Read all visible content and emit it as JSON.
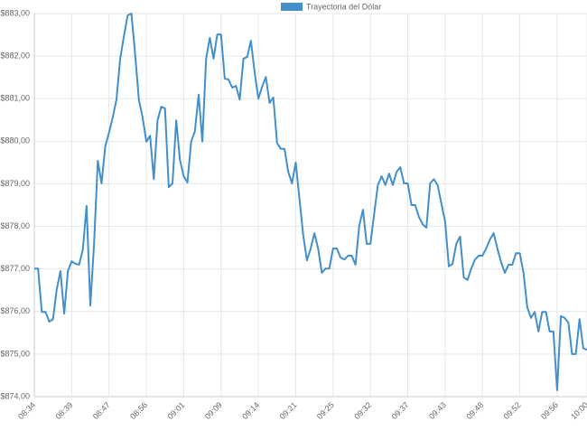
{
  "chart_data": {
    "type": "line",
    "categories": [
      "08:34",
      null,
      null,
      null,
      null,
      null,
      null,
      null,
      null,
      null,
      "08:39",
      null,
      null,
      null,
      null,
      null,
      null,
      null,
      null,
      null,
      "08:47",
      null,
      null,
      null,
      null,
      null,
      null,
      null,
      null,
      null,
      "08:56",
      null,
      null,
      null,
      null,
      null,
      null,
      null,
      null,
      null,
      "09:01",
      null,
      null,
      null,
      null,
      null,
      null,
      null,
      null,
      null,
      "09:09",
      null,
      null,
      null,
      null,
      null,
      null,
      null,
      null,
      null,
      "09:14",
      null,
      null,
      null,
      null,
      null,
      null,
      null,
      null,
      null,
      "09:21",
      null,
      null,
      null,
      null,
      null,
      null,
      null,
      null,
      null,
      "09:25",
      null,
      null,
      null,
      null,
      null,
      null,
      null,
      null,
      null,
      "09:32",
      null,
      null,
      null,
      null,
      null,
      null,
      null,
      null,
      null,
      "09:37",
      null,
      null,
      null,
      null,
      null,
      null,
      null,
      null,
      null,
      "09:43",
      null,
      null,
      null,
      null,
      null,
      null,
      null,
      null,
      null,
      "09:48",
      null,
      null,
      null,
      null,
      null,
      null,
      null,
      null,
      null,
      "09:52",
      null,
      null,
      null,
      null,
      null,
      null,
      null,
      null,
      null,
      "09:56",
      null,
      null,
      null,
      null,
      null,
      null,
      null,
      "10:00"
    ],
    "series": [
      {
        "name": "Trayectoria del Dólar",
        "color": "#428fcc",
        "values": [
          877.01,
          877.01,
          875.99,
          875.99,
          875.76,
          875.82,
          876.52,
          876.95,
          875.95,
          876.95,
          877.18,
          877.12,
          877.1,
          877.46,
          878.48,
          876.14,
          877.59,
          879.54,
          879.01,
          879.88,
          880.2,
          880.56,
          880.98,
          881.94,
          882.47,
          882.96,
          883.0,
          882.04,
          880.98,
          880.56,
          879.99,
          880.13,
          879.11,
          880.49,
          880.81,
          880.77,
          878.92,
          879.01,
          880.49,
          879.56,
          879.18,
          879.03,
          879.99,
          880.24,
          881.09,
          879.99,
          881.94,
          882.43,
          881.94,
          882.51,
          882.51,
          881.47,
          881.45,
          881.26,
          881.3,
          880.98,
          881.94,
          881.98,
          882.36,
          881.62,
          881.0,
          881.28,
          881.51,
          880.9,
          881.03,
          879.96,
          879.82,
          879.82,
          879.28,
          879.01,
          879.5,
          878.65,
          877.8,
          877.2,
          877.48,
          877.84,
          877.48,
          876.91,
          877.01,
          877.01,
          877.48,
          877.48,
          877.27,
          877.22,
          877.31,
          877.31,
          877.1,
          878.01,
          878.39,
          877.59,
          877.59,
          878.29,
          878.97,
          879.18,
          878.97,
          879.24,
          878.97,
          879.28,
          879.39,
          879.01,
          879.01,
          878.5,
          878.5,
          878.22,
          878.05,
          877.97,
          879.01,
          879.11,
          878.97,
          878.54,
          878.12,
          877.06,
          877.12,
          877.59,
          877.76,
          876.8,
          876.74,
          877.01,
          877.22,
          877.31,
          877.31,
          877.48,
          877.69,
          877.84,
          877.48,
          877.16,
          876.91,
          877.1,
          877.1,
          877.37,
          877.37,
          876.91,
          876.1,
          875.85,
          875.99,
          875.53,
          875.99,
          875.99,
          875.53,
          875.53,
          874.15,
          875.89,
          875.85,
          875.74,
          875.0,
          875.0,
          875.82,
          875.14,
          875.1
        ]
      }
    ],
    "ylim": [
      874,
      883
    ],
    "yticks": [
      {
        "value": 874,
        "label": "$874,00"
      },
      {
        "value": 875,
        "label": "$875,00"
      },
      {
        "value": 876,
        "label": "$876,00"
      },
      {
        "value": 877,
        "label": "$877,00"
      },
      {
        "value": 878,
        "label": "$878,00"
      },
      {
        "value": 879,
        "label": "$879,00"
      },
      {
        "value": 880,
        "label": "$880,00"
      },
      {
        "value": 881,
        "label": "$881,00"
      },
      {
        "value": 882,
        "label": "$882,00"
      },
      {
        "value": 883,
        "label": "$883,00"
      }
    ],
    "grid": true,
    "legend": "top"
  }
}
